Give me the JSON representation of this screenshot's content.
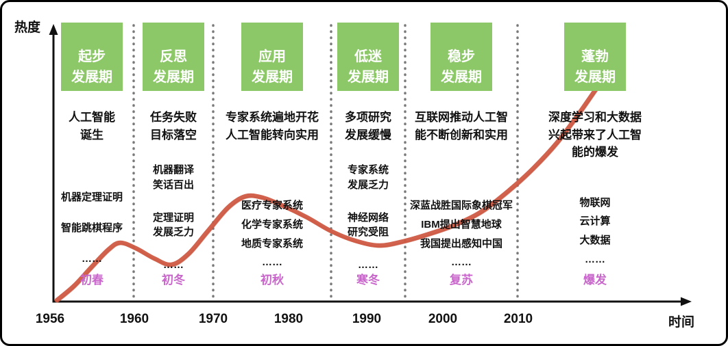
{
  "axes": {
    "y_label": "热度",
    "x_label": "时间",
    "x_ticks": [
      "1956",
      "1960",
      "1970",
      "1980",
      "1990",
      "2000",
      "2010"
    ]
  },
  "periods": [
    {
      "title": "起步\n发展期",
      "headline": "人工智能\n诞生",
      "items": [
        "机器定理证明",
        "智能跳棋程序",
        "……"
      ],
      "season": "初春"
    },
    {
      "title": "反思\n发展期",
      "headline": "任务失败\n目标落空",
      "items": [
        "机器翻译\n笑话百出",
        "定理证明\n发展乏力",
        "……"
      ],
      "season": "初冬"
    },
    {
      "title": "应用\n发展期",
      "headline": "专家系统遍地开花\n人工智能转向实用",
      "items": [
        "医疗专家系统",
        "化学专家系统",
        "地质专家系统",
        "……"
      ],
      "season": "初秋"
    },
    {
      "title": "低迷\n发展期",
      "headline": "多项研究\n发展缓慢",
      "items": [
        "专家系统\n发展乏力",
        "神经网络\n研究受阻",
        "……"
      ],
      "season": "寒冬"
    },
    {
      "title": "稳步\n发展期",
      "headline": "互联网推动人工智\n能不断创新和实用",
      "items": [
        "深蓝战胜国际象棋冠军",
        "IBM提出智慧地球",
        "我国提出感知中国",
        "……"
      ],
      "season": "复苏"
    },
    {
      "title": "蓬勃\n发展期",
      "headline": "深度学习和大数据\n兴起带来了人工智\n能的爆发",
      "items": [
        "物联网",
        "云计算",
        "大数据",
        "……"
      ],
      "season": "爆发"
    }
  ],
  "curve": {
    "color": "#cf5a43",
    "shade_color": "#b04a35",
    "points": [
      [
        80,
        436
      ],
      [
        105,
        415
      ],
      [
        130,
        388
      ],
      [
        155,
        362
      ],
      [
        172,
        352
      ],
      [
        195,
        360
      ],
      [
        222,
        375
      ],
      [
        247,
        384
      ],
      [
        272,
        368
      ],
      [
        300,
        335
      ],
      [
        330,
        300
      ],
      [
        355,
        284
      ],
      [
        380,
        286
      ],
      [
        410,
        298
      ],
      [
        445,
        315
      ],
      [
        480,
        335
      ],
      [
        515,
        349
      ],
      [
        550,
        356
      ],
      [
        585,
        350
      ],
      [
        620,
        340
      ],
      [
        660,
        326
      ],
      [
        700,
        306
      ],
      [
        740,
        275
      ],
      [
        775,
        243
      ],
      [
        810,
        205
      ],
      [
        840,
        165
      ],
      [
        868,
        125
      ],
      [
        890,
        95
      ],
      [
        905,
        80
      ]
    ]
  },
  "colors": {
    "green": "#8cc868",
    "magenta": "#c966cb",
    "ink": "#111111",
    "dot": "#7a7a7a"
  }
}
